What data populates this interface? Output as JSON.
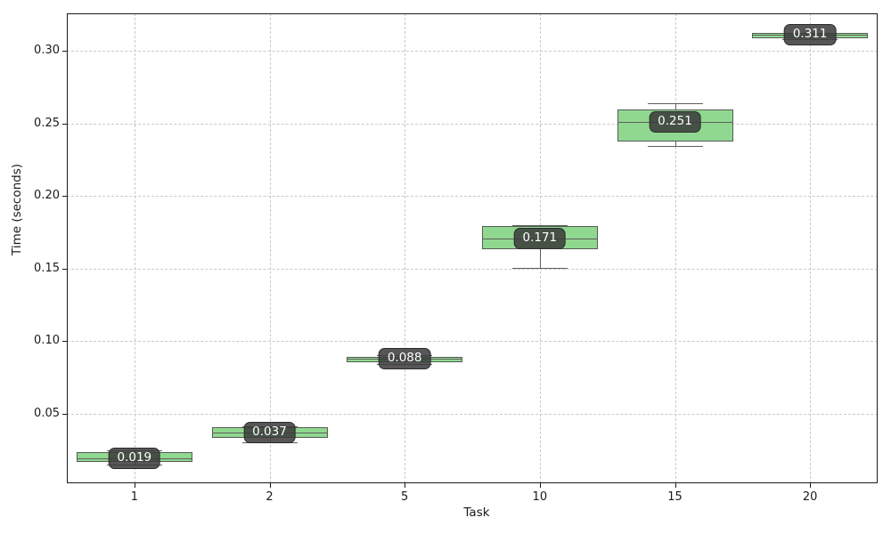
{
  "chart_data": {
    "type": "box",
    "title": "",
    "xlabel": "Task",
    "ylabel": "Time (seconds)",
    "categories": [
      "1",
      "2",
      "5",
      "10",
      "15",
      "20"
    ],
    "ytick_labels": [
      "0.05",
      "0.10",
      "0.15",
      "0.20",
      "0.25",
      "0.30"
    ],
    "ytick_values": [
      0.05,
      0.1,
      0.15,
      0.2,
      0.25,
      0.3
    ],
    "ylim": [
      0.002,
      0.326
    ],
    "grid": true,
    "legend": "none",
    "boxes": [
      {
        "category": "1",
        "whislo": 0.015,
        "q1": 0.0165,
        "med": 0.019,
        "q3": 0.0235,
        "whishi": 0.0245,
        "annotation": "0.019"
      },
      {
        "category": "2",
        "whislo": 0.0305,
        "q1": 0.0333,
        "med": 0.037,
        "q3": 0.0407,
        "whishi": 0.0415,
        "annotation": "0.037"
      },
      {
        "category": "5",
        "whislo": 0.084,
        "q1": 0.0852,
        "med": 0.088,
        "q3": 0.0889,
        "whishi": 0.0901,
        "annotation": "0.088"
      },
      {
        "category": "10",
        "whislo": 0.1505,
        "q1": 0.1636,
        "med": 0.171,
        "q3": 0.1796,
        "whishi": 0.1802,
        "annotation": "0.171"
      },
      {
        "category": "15",
        "whislo": 0.2345,
        "q1": 0.2375,
        "med": 0.251,
        "q3": 0.2595,
        "whishi": 0.264,
        "annotation": "0.251"
      },
      {
        "category": "20",
        "whislo": 0.3085,
        "q1": 0.309,
        "med": 0.311,
        "q3": 0.3123,
        "whishi": 0.3125,
        "annotation": "0.311"
      }
    ],
    "colors": {
      "box_fill": "#90d890",
      "box_edge": "#565b56",
      "whisker": "#5e5e5e",
      "median": "#5e5e5e",
      "grid": "#c9c9c9",
      "annotation_bg": "rgba(58,58,58,0.85)",
      "annotation_border": "#2b2b2b",
      "annotation_text": "#ffffff",
      "spine": "#1a1a1a"
    }
  }
}
